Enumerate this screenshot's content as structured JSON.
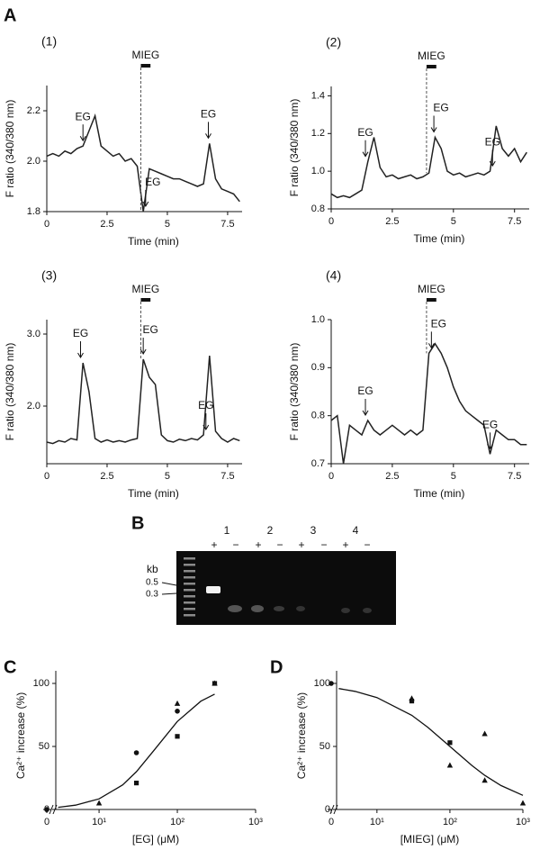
{
  "chart_data": [
    {
      "type": "line",
      "panel_label": "A",
      "label": "(1)",
      "xlabel": "Time (min)",
      "ylabel": "F ratio (340/380 nm)",
      "xlim": [
        0,
        8.1
      ],
      "xticks": [
        0,
        2.5,
        5,
        {
          "value": 7.5,
          "label": "7.5"
        }
      ],
      "ylim": [
        1.8,
        2.3
      ],
      "yticks": [
        1.8,
        {
          "value": 2,
          "label": "2.0"
        },
        2.2
      ],
      "x": [
        0,
        0.25,
        0.5,
        0.75,
        1,
        1.25,
        1.5,
        1.75,
        2,
        2.25,
        2.5,
        2.75,
        3,
        3.25,
        3.5,
        3.75,
        4,
        4.25,
        4.5,
        4.75,
        5,
        5.25,
        5.5,
        5.75,
        6,
        6.25,
        6.5,
        6.75,
        7,
        7.25,
        7.5,
        7.75,
        8
      ],
      "series": [
        {
          "color": "#222222",
          "values": [
            2.02,
            2.03,
            2.02,
            2.04,
            2.03,
            2.05,
            2.06,
            2.12,
            2.18,
            2.06,
            2.04,
            2.02,
            2.03,
            2.0,
            2.01,
            1.98,
            1.8,
            1.97,
            1.96,
            1.95,
            1.94,
            1.93,
            1.93,
            1.92,
            1.91,
            1.9,
            1.91,
            2.07,
            1.93,
            1.89,
            1.88,
            1.87,
            1.84
          ]
        }
      ],
      "annotations": [
        {
          "text": "EG",
          "x": 1.5
        },
        {
          "text": "EG",
          "x": 4.1
        },
        {
          "text": "EG",
          "x": 6.7
        }
      ],
      "bar": {
        "text": "MIEG",
        "range": [
          3.9,
          4.3
        ]
      }
    },
    {
      "type": "line",
      "label": "(2)",
      "xlabel": "Time (min)",
      "ylabel": "F ratio (340/380 nm)",
      "xlim": [
        0,
        8.1
      ],
      "xticks": [
        0,
        2.5,
        5,
        7.5
      ],
      "ylim": [
        0.8,
        1.45
      ],
      "yticks": [
        0.8,
        {
          "value": 1,
          "label": "1.0"
        },
        1.2,
        1.4
      ],
      "x": [
        0,
        0.25,
        0.5,
        0.75,
        1,
        1.25,
        1.5,
        1.75,
        2,
        2.25,
        2.5,
        2.75,
        3,
        3.25,
        3.5,
        3.75,
        4,
        4.25,
        4.5,
        4.75,
        5,
        5.25,
        5.5,
        5.75,
        6,
        6.25,
        6.5,
        6.75,
        7,
        7.25,
        7.5,
        7.75,
        8
      ],
      "series": [
        {
          "color": "#222222",
          "values": [
            0.88,
            0.86,
            0.87,
            0.86,
            0.88,
            0.9,
            1.05,
            1.18,
            1.02,
            0.97,
            0.98,
            0.96,
            0.97,
            0.98,
            0.96,
            0.97,
            0.99,
            1.18,
            1.12,
            1.0,
            0.98,
            0.99,
            0.97,
            0.98,
            0.99,
            0.98,
            1.0,
            1.24,
            1.12,
            1.08,
            1.12,
            1.05,
            1.1
          ]
        }
      ],
      "annotations": [
        {
          "text": "EG",
          "x": 1.4
        },
        {
          "text": "EG",
          "x": 4.2
        },
        {
          "text": "EG",
          "x": 6.6
        }
      ],
      "bar": {
        "text": "MIEG",
        "range": [
          3.9,
          4.3
        ]
      }
    },
    {
      "type": "line",
      "label": "(3)",
      "xlabel": "Time (min)",
      "ylabel": "F ratio (340/380 nm)",
      "xlim": [
        0,
        8.1
      ],
      "xticks": [
        0,
        2.5,
        5,
        7.5
      ],
      "ylim": [
        1.2,
        3.2
      ],
      "yticks": [
        {
          "value": 2,
          "label": "2.0"
        },
        {
          "value": 3,
          "label": "3.0"
        }
      ],
      "x": [
        0,
        0.25,
        0.5,
        0.75,
        1,
        1.25,
        1.5,
        1.75,
        2,
        2.25,
        2.5,
        2.75,
        3,
        3.25,
        3.5,
        3.75,
        4,
        4.25,
        4.5,
        4.75,
        5,
        5.25,
        5.5,
        5.75,
        6,
        6.25,
        6.5,
        6.75,
        7,
        7.25,
        7.5,
        7.75,
        8
      ],
      "series": [
        {
          "color": "#222222",
          "values": [
            1.5,
            1.48,
            1.52,
            1.5,
            1.55,
            1.53,
            2.6,
            2.2,
            1.55,
            1.5,
            1.53,
            1.5,
            1.52,
            1.5,
            1.53,
            1.55,
            2.65,
            2.4,
            2.3,
            1.6,
            1.52,
            1.5,
            1.54,
            1.52,
            1.55,
            1.53,
            1.6,
            2.7,
            1.65,
            1.55,
            1.5,
            1.55,
            1.52
          ]
        }
      ],
      "annotations": [
        {
          "text": "EG",
          "x": 1.4
        },
        {
          "text": "EG",
          "x": 4.0
        },
        {
          "text": "EG",
          "x": 6.6
        }
      ],
      "bar": {
        "text": "MIEG",
        "range": [
          3.9,
          4.3
        ]
      }
    },
    {
      "type": "line",
      "label": "(4)",
      "xlabel": "Time (min)",
      "ylabel": "F ratio (340/380 nm)",
      "xlim": [
        0,
        8.1
      ],
      "xticks": [
        0,
        2.5,
        5,
        7.5
      ],
      "ylim": [
        0.7,
        1.0
      ],
      "yticks": [
        0.7,
        0.8,
        0.9,
        {
          "value": 1,
          "label": "1.0"
        }
      ],
      "x": [
        0,
        0.25,
        0.5,
        0.75,
        1,
        1.25,
        1.5,
        1.75,
        2,
        2.25,
        2.5,
        2.75,
        3,
        3.25,
        3.5,
        3.75,
        4,
        4.25,
        4.5,
        4.75,
        5,
        5.25,
        5.5,
        5.75,
        6,
        6.25,
        6.5,
        6.75,
        7,
        7.25,
        7.5,
        7.75,
        8
      ],
      "series": [
        {
          "color": "#222222",
          "values": [
            0.79,
            0.8,
            0.7,
            0.78,
            0.77,
            0.76,
            0.79,
            0.77,
            0.76,
            0.77,
            0.78,
            0.77,
            0.76,
            0.77,
            0.76,
            0.77,
            0.93,
            0.95,
            0.93,
            0.9,
            0.86,
            0.83,
            0.81,
            0.8,
            0.79,
            0.78,
            0.72,
            0.77,
            0.76,
            0.75,
            0.75,
            0.74,
            0.74
          ]
        }
      ],
      "annotations": [
        {
          "text": "EG",
          "x": 1.4
        },
        {
          "text": "EG",
          "x": 4.1
        },
        {
          "text": "EG",
          "x": 6.5
        }
      ],
      "bar": {
        "text": "MIEG",
        "range": [
          3.9,
          4.3
        ]
      }
    },
    {
      "type": "scatter",
      "panel_label": "C",
      "xlabel": "[EG] (μM)",
      "ylabel": "Ca²⁺ increase (%)",
      "log_x": true,
      "xlim": [
        2.8,
        1000
      ],
      "xticks": [
        0,
        {
          "value": 10,
          "label": "10¹"
        },
        {
          "value": 100,
          "label": "10²"
        },
        {
          "value": 1000,
          "label": "10³"
        }
      ],
      "ylim": [
        0,
        110
      ],
      "yticks": [
        0,
        50,
        100
      ],
      "series": [
        {
          "marker": "circle",
          "color": "#111111",
          "x": [
            0,
            30,
            100
          ],
          "values": [
            0,
            45,
            78
          ]
        },
        {
          "marker": "square",
          "color": "#111111",
          "x": [
            30,
            100,
            300
          ],
          "values": [
            21,
            58,
            100
          ]
        },
        {
          "marker": "triangle",
          "color": "#111111",
          "x": [
            10,
            100,
            300
          ],
          "values": [
            5,
            84,
            100
          ]
        },
        {
          "marker": "none",
          "color": "#111111",
          "x": [
            3,
            5,
            10,
            20,
            30,
            50,
            100,
            200,
            300
          ],
          "values": [
            1.7,
            3.4,
            8.4,
            19.5,
            30,
            46.7,
            69.8,
            85.9,
            91.5
          ]
        }
      ]
    },
    {
      "type": "scatter",
      "panel_label": "D",
      "xlabel": "[MIEG] (μM)",
      "ylabel": "Ca²⁺ increase (%)",
      "log_x": true,
      "xlim": [
        2.8,
        1000
      ],
      "xticks": [
        0,
        {
          "value": 10,
          "label": "10¹"
        },
        {
          "value": 100,
          "label": "10²"
        },
        {
          "value": 1000,
          "label": "10³"
        }
      ],
      "ylim": [
        0,
        110
      ],
      "yticks": [
        0,
        50,
        100
      ],
      "series": [
        {
          "marker": "circle",
          "color": "#111111",
          "x": [
            0
          ],
          "values": [
            100
          ]
        },
        {
          "marker": "square",
          "color": "#111111",
          "x": [
            30,
            100
          ],
          "values": [
            86,
            53
          ]
        },
        {
          "marker": "triangle",
          "color": "#111111",
          "x": [
            30,
            100,
            300,
            300,
            1000
          ],
          "values": [
            88,
            35,
            60,
            23,
            5
          ]
        },
        {
          "marker": "none",
          "color": "#111111",
          "x": [
            3,
            5,
            10,
            30,
            50,
            100,
            200,
            300,
            500,
            1000
          ],
          "values": [
            95.9,
            93.7,
            88.8,
            74.7,
            65.1,
            50,
            34.9,
            27.1,
            19,
            11.2
          ]
        }
      ]
    }
  ],
  "gel": {
    "panel_label": "B",
    "lanes": [
      "1",
      "2",
      "3",
      "4"
    ],
    "signs": [
      "+",
      "−",
      "+",
      "−",
      "+",
      "−",
      "+",
      "−"
    ],
    "unit": "kb",
    "markers": [
      "0.5",
      "0.3"
    ]
  }
}
